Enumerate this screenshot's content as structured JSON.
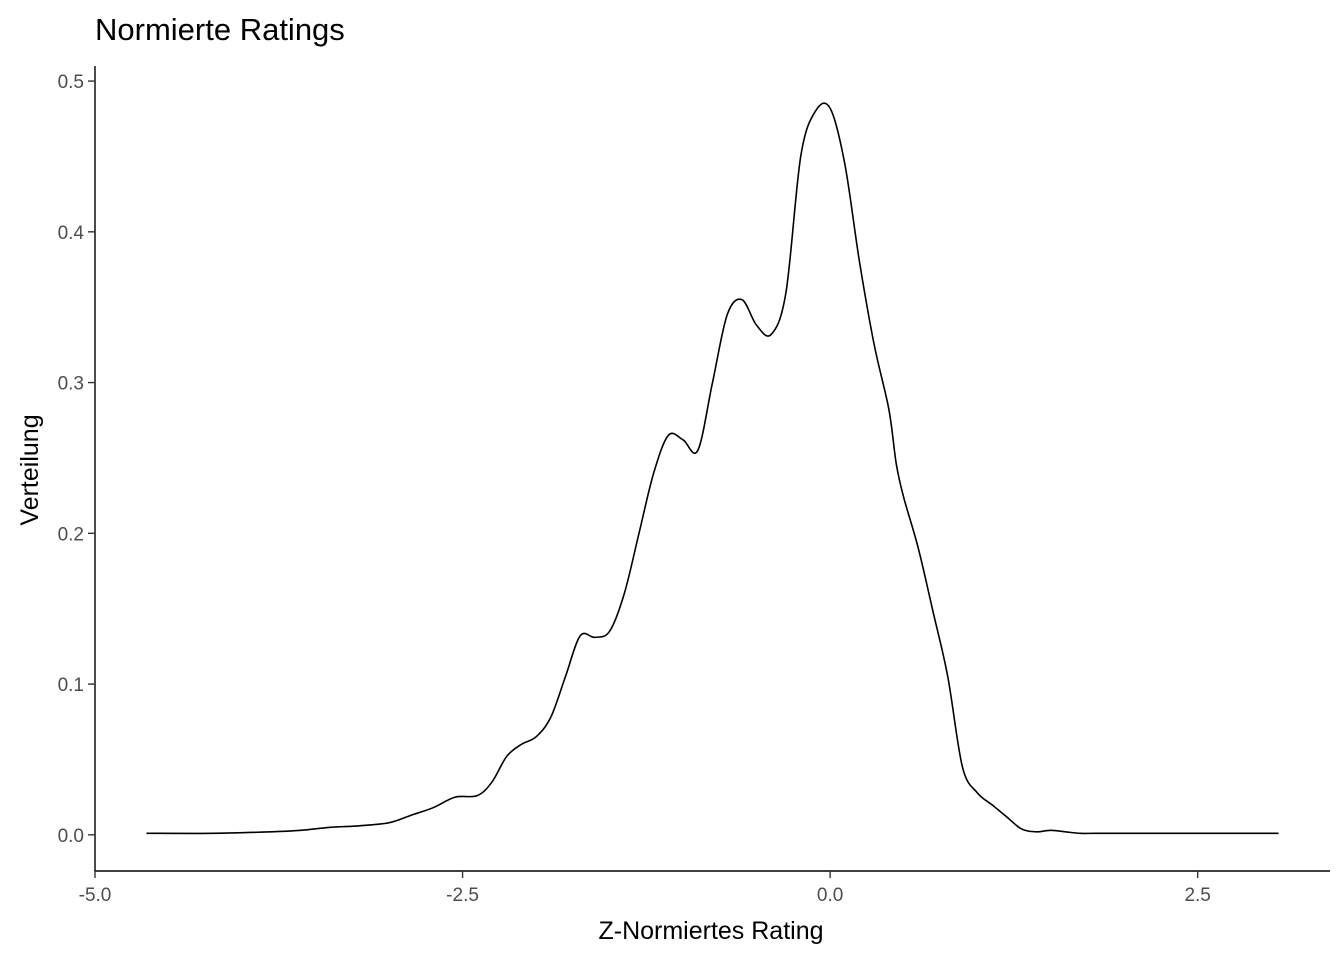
{
  "chart_data": {
    "type": "line",
    "title": "Normierte Ratings",
    "xlabel": "Z-Normiertes Rating",
    "ylabel": "Verteilung",
    "xlim": [
      -5.0,
      3.4
    ],
    "ylim": [
      -0.024,
      0.51
    ],
    "x_ticks": [
      -5.0,
      -2.5,
      0.0,
      2.5
    ],
    "x_tick_labels": [
      "-5.0",
      "-2.5",
      "0.0",
      "2.5"
    ],
    "y_ticks": [
      0.0,
      0.1,
      0.2,
      0.3,
      0.4,
      0.5
    ],
    "y_tick_labels": [
      "0.0",
      "0.1",
      "0.2",
      "0.3",
      "0.4",
      "0.5"
    ],
    "grid": false,
    "legend": "none",
    "series": [
      {
        "color": "#000000",
        "x": [
          -4.65,
          -4.2,
          -3.8,
          -3.6,
          -3.4,
          -3.2,
          -3.0,
          -2.85,
          -2.7,
          -2.55,
          -2.4,
          -2.3,
          -2.2,
          -2.1,
          -2.0,
          -1.9,
          -1.8,
          -1.7,
          -1.6,
          -1.5,
          -1.4,
          -1.3,
          -1.2,
          -1.1,
          -1.0,
          -0.9,
          -0.8,
          -0.7,
          -0.6,
          -0.5,
          -0.4,
          -0.3,
          -0.2,
          -0.1,
          0.0,
          0.1,
          0.2,
          0.3,
          0.4,
          0.45,
          0.5,
          0.6,
          0.7,
          0.8,
          0.9,
          1.0,
          1.1,
          1.2,
          1.3,
          1.4,
          1.5,
          1.6,
          1.7,
          1.8,
          1.9,
          2.0,
          2.1,
          2.2,
          2.3,
          2.4,
          2.5,
          2.6,
          2.7,
          2.8,
          2.9,
          3.0,
          3.05
        ],
        "y": [
          0.001,
          0.001,
          0.002,
          0.003,
          0.005,
          0.006,
          0.008,
          0.013,
          0.018,
          0.025,
          0.026,
          0.035,
          0.052,
          0.06,
          0.065,
          0.078,
          0.105,
          0.132,
          0.131,
          0.135,
          0.16,
          0.2,
          0.24,
          0.265,
          0.262,
          0.255,
          0.3,
          0.345,
          0.355,
          0.338,
          0.332,
          0.36,
          0.45,
          0.48,
          0.482,
          0.445,
          0.38,
          0.325,
          0.282,
          0.246,
          0.224,
          0.19,
          0.148,
          0.105,
          0.045,
          0.028,
          0.02,
          0.012,
          0.004,
          0.002,
          0.003,
          0.002,
          0.001,
          0.001,
          0.001,
          0.001,
          0.001,
          0.001,
          0.001,
          0.001,
          0.001,
          0.001,
          0.001,
          0.001,
          0.001,
          0.001,
          0.001
        ]
      }
    ]
  }
}
